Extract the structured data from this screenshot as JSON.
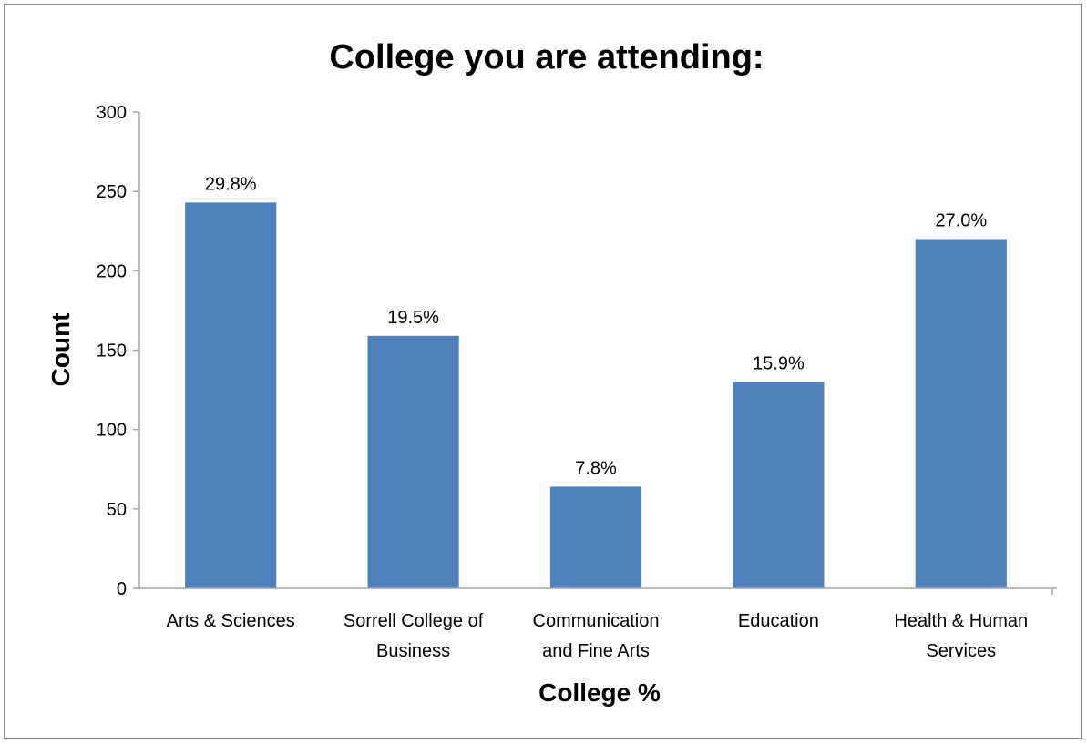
{
  "chart_data": {
    "type": "bar",
    "title": "College you are attending:",
    "xlabel": "College %",
    "ylabel": "Count",
    "ylim": [
      0,
      300
    ],
    "yticks": [
      "0",
      "50",
      "100",
      "150",
      "200",
      "250",
      "300"
    ],
    "categories": [
      [
        "Arts & Sciences"
      ],
      [
        "Sorrell College of",
        "Business"
      ],
      [
        "Communication",
        "and Fine Arts"
      ],
      [
        "Education"
      ],
      [
        "Health & Human",
        "Services"
      ]
    ],
    "values": [
      243,
      159,
      64,
      130,
      220
    ],
    "data_labels": [
      "29.8%",
      "19.5%",
      "7.8%",
      "15.9%",
      "27.0%"
    ],
    "bar_color": "#4f81bd",
    "grid": false,
    "legend": "none"
  }
}
